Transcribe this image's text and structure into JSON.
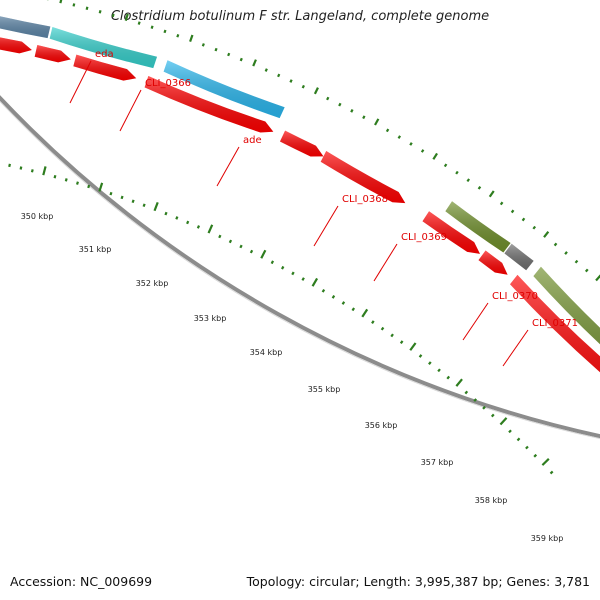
{
  "title": "Clostridium botulinum F str. Langeland, complete genome",
  "footer": {
    "accession": "Accession: NC_009699",
    "summary": "Topology: circular; Length: 3,995,387 bp; Genes: 3,781"
  },
  "colors": {
    "backbone": "#8c8c8c",
    "tick": "#2e7d1f",
    "label_line": "#e00000",
    "cds": "#ff0000",
    "teal": "#35d0cc",
    "sky": "#2ab7ee",
    "olive": "#6f8f2a",
    "gray": "#6f6f6f",
    "steel": "#5d86a8"
  },
  "scale": {
    "labels": [
      "350 kbp",
      "351 kbp",
      "352 kbp",
      "353 kbp",
      "354 kbp",
      "355 kbp",
      "356 kbp",
      "357 kbp",
      "358 kbp",
      "359 kbp"
    ]
  },
  "feature_labels": [
    "eda",
    "CLI_0366",
    "ade",
    "CLI_0368",
    "CLI_0369",
    "CLI_0370",
    "CLI_0371"
  ],
  "features": [
    {
      "track": "outer",
      "color": "steel",
      "label": ""
    },
    {
      "track": "outer",
      "color": "teal",
      "label": "CLI_0366"
    },
    {
      "track": "outer",
      "color": "sky",
      "label": "ade"
    },
    {
      "track": "outer",
      "color": "olive",
      "label": "CLI_0370"
    },
    {
      "track": "outer",
      "color": "gray",
      "label": "CLI_0371"
    },
    {
      "track": "outer",
      "color": "olive",
      "label": ""
    },
    {
      "track": "cds",
      "color": "cds",
      "label": "eda"
    },
    {
      "track": "cds",
      "color": "cds",
      "label": ""
    },
    {
      "track": "cds",
      "color": "cds",
      "label": ""
    },
    {
      "track": "cds",
      "color": "cds",
      "label": ""
    },
    {
      "track": "cds",
      "color": "cds",
      "label": "CLI_0368"
    },
    {
      "track": "cds",
      "color": "cds",
      "label": "CLI_0369"
    },
    {
      "track": "cds",
      "color": "cds",
      "label": ""
    },
    {
      "track": "cds",
      "color": "cds",
      "label": ""
    },
    {
      "track": "cds",
      "color": "cds",
      "label": ""
    }
  ]
}
